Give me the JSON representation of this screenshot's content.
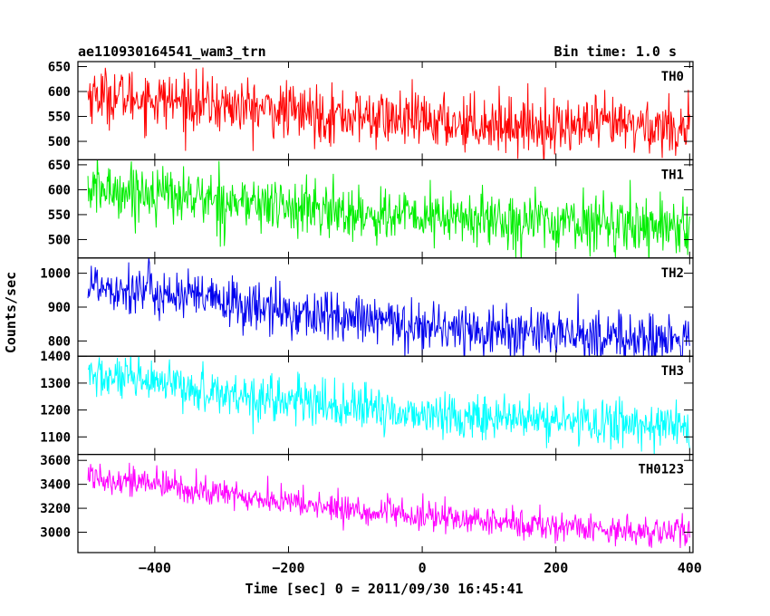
{
  "header": {
    "title": "ae110930164541_wam3_trn",
    "bin_time": "Bin time: 1.0 s"
  },
  "chart_data": {
    "type": "line",
    "title": "ae110930164541_wam3_trn",
    "subtitle": "Bin time: 1.0 s",
    "xlabel": "Time [sec] 0 = 2011/09/30 16:45:41",
    "ylabel": "Counts/sec",
    "xlim": [
      -515,
      405
    ],
    "x_range": [
      -500,
      400
    ],
    "x_ticks": [
      -400,
      -200,
      0,
      200,
      400
    ],
    "grid": false,
    "panels": [
      {
        "name": "TH0",
        "color": "#ff0000",
        "ylim": [
          463,
          660
        ],
        "y_ticks": [
          500,
          550,
          600,
          650
        ],
        "trend": {
          "x": [
            -500,
            -400,
            -300,
            -200,
            -100,
            0,
            100,
            200,
            300,
            400
          ],
          "y": [
            595,
            585,
            572,
            560,
            550,
            540,
            536,
            530,
            532,
            528
          ]
        },
        "noise_sigma": 28
      },
      {
        "name": "TH1",
        "color": "#00ee00",
        "ylim": [
          463,
          660
        ],
        "y_ticks": [
          500,
          550,
          600,
          650
        ],
        "trend": {
          "x": [
            -500,
            -400,
            -300,
            -200,
            -100,
            0,
            100,
            200,
            300,
            400
          ],
          "y": [
            600,
            595,
            578,
            565,
            552,
            545,
            540,
            535,
            532,
            528
          ]
        },
        "noise_sigma": 28
      },
      {
        "name": "TH2",
        "color": "#0000ee",
        "ylim": [
          755,
          1045
        ],
        "y_ticks": [
          800,
          900,
          1000
        ],
        "trend": {
          "x": [
            -500,
            -400,
            -300,
            -200,
            -100,
            0,
            100,
            200,
            300,
            400
          ],
          "y": [
            970,
            945,
            915,
            885,
            862,
            845,
            830,
            820,
            810,
            798
          ]
        },
        "noise_sigma": 38
      },
      {
        "name": "TH3",
        "color": "#00ffff",
        "ylim": [
          1035,
          1400
        ],
        "y_ticks": [
          1100,
          1200,
          1300,
          1400
        ],
        "trend": {
          "x": [
            -500,
            -400,
            -300,
            -200,
            -100,
            0,
            100,
            200,
            300,
            400
          ],
          "y": [
            1330,
            1295,
            1265,
            1235,
            1205,
            1185,
            1170,
            1160,
            1150,
            1140
          ]
        },
        "noise_sigma": 42
      },
      {
        "name": "TH0123",
        "color": "#ff00ff",
        "ylim": [
          2830,
          3650
        ],
        "y_ticks": [
          3000,
          3200,
          3400,
          3600
        ],
        "trend": {
          "x": [
            -500,
            -400,
            -300,
            -200,
            -100,
            0,
            100,
            200,
            300,
            400
          ],
          "y": [
            3480,
            3400,
            3320,
            3250,
            3180,
            3130,
            3090,
            3050,
            3020,
            2990
          ]
        },
        "noise_sigma": 62
      }
    ]
  }
}
